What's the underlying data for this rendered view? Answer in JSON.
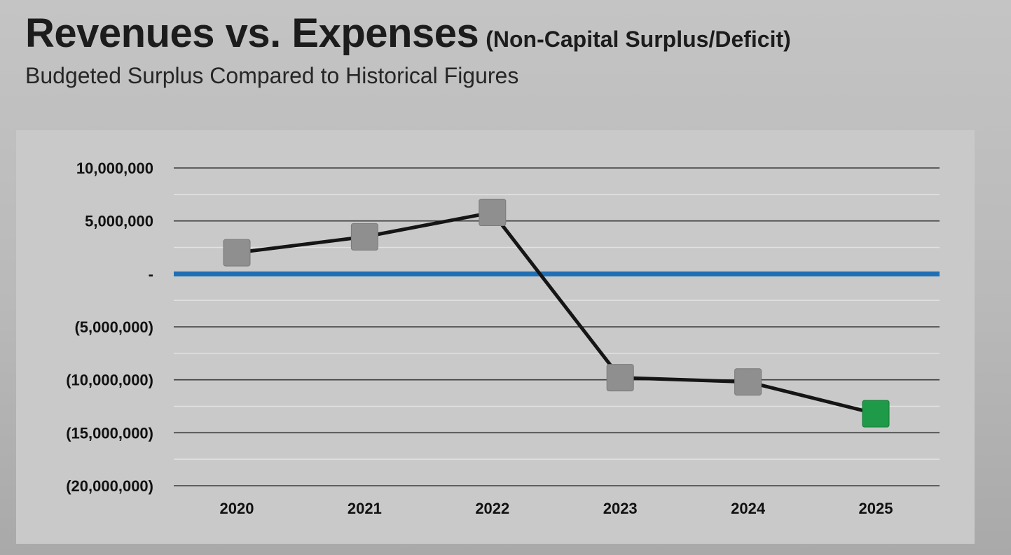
{
  "title": {
    "main": "Revenues vs. Expenses",
    "parenthetical": "(Non-Capital Surplus/Deficit)"
  },
  "subtitle": "Budgeted Surplus Compared to Historical Figures",
  "colors": {
    "series_line": "#151515",
    "historical_marker": "#8f8f8f",
    "budget_marker": "#1f9a48",
    "zero_line": "#1f6fb5",
    "major_grid": "#3a3a3a",
    "minor_grid": "#e2e2e2"
  },
  "chart_data": {
    "type": "line",
    "title": "Revenues vs. Expenses (Non-Capital Surplus/Deficit)",
    "subtitle": "Budgeted Surplus Compared to Historical Figures",
    "xlabel": "",
    "ylabel": "",
    "categories": [
      "2020",
      "2021",
      "2022",
      "2023",
      "2024",
      "2025"
    ],
    "series": [
      {
        "name": "Non-Capital Surplus/Deficit",
        "values": [
          2000000,
          3500000,
          5800000,
          -9800000,
          -10200000,
          -13200000
        ],
        "marker_types": [
          "historical",
          "historical",
          "historical",
          "historical",
          "historical",
          "budget"
        ]
      }
    ],
    "ylim": [
      -20000000,
      10000000
    ],
    "y_ticks": [
      10000000,
      5000000,
      0,
      -5000000,
      -10000000,
      -15000000,
      -20000000
    ],
    "y_tick_labels": [
      "10,000,000",
      "5,000,000",
      "-",
      "(5,000,000)",
      "(10,000,000)",
      "(15,000,000)",
      "(20,000,000)"
    ],
    "minor_grid_step": 2500000,
    "grid": true,
    "legend": "none"
  }
}
